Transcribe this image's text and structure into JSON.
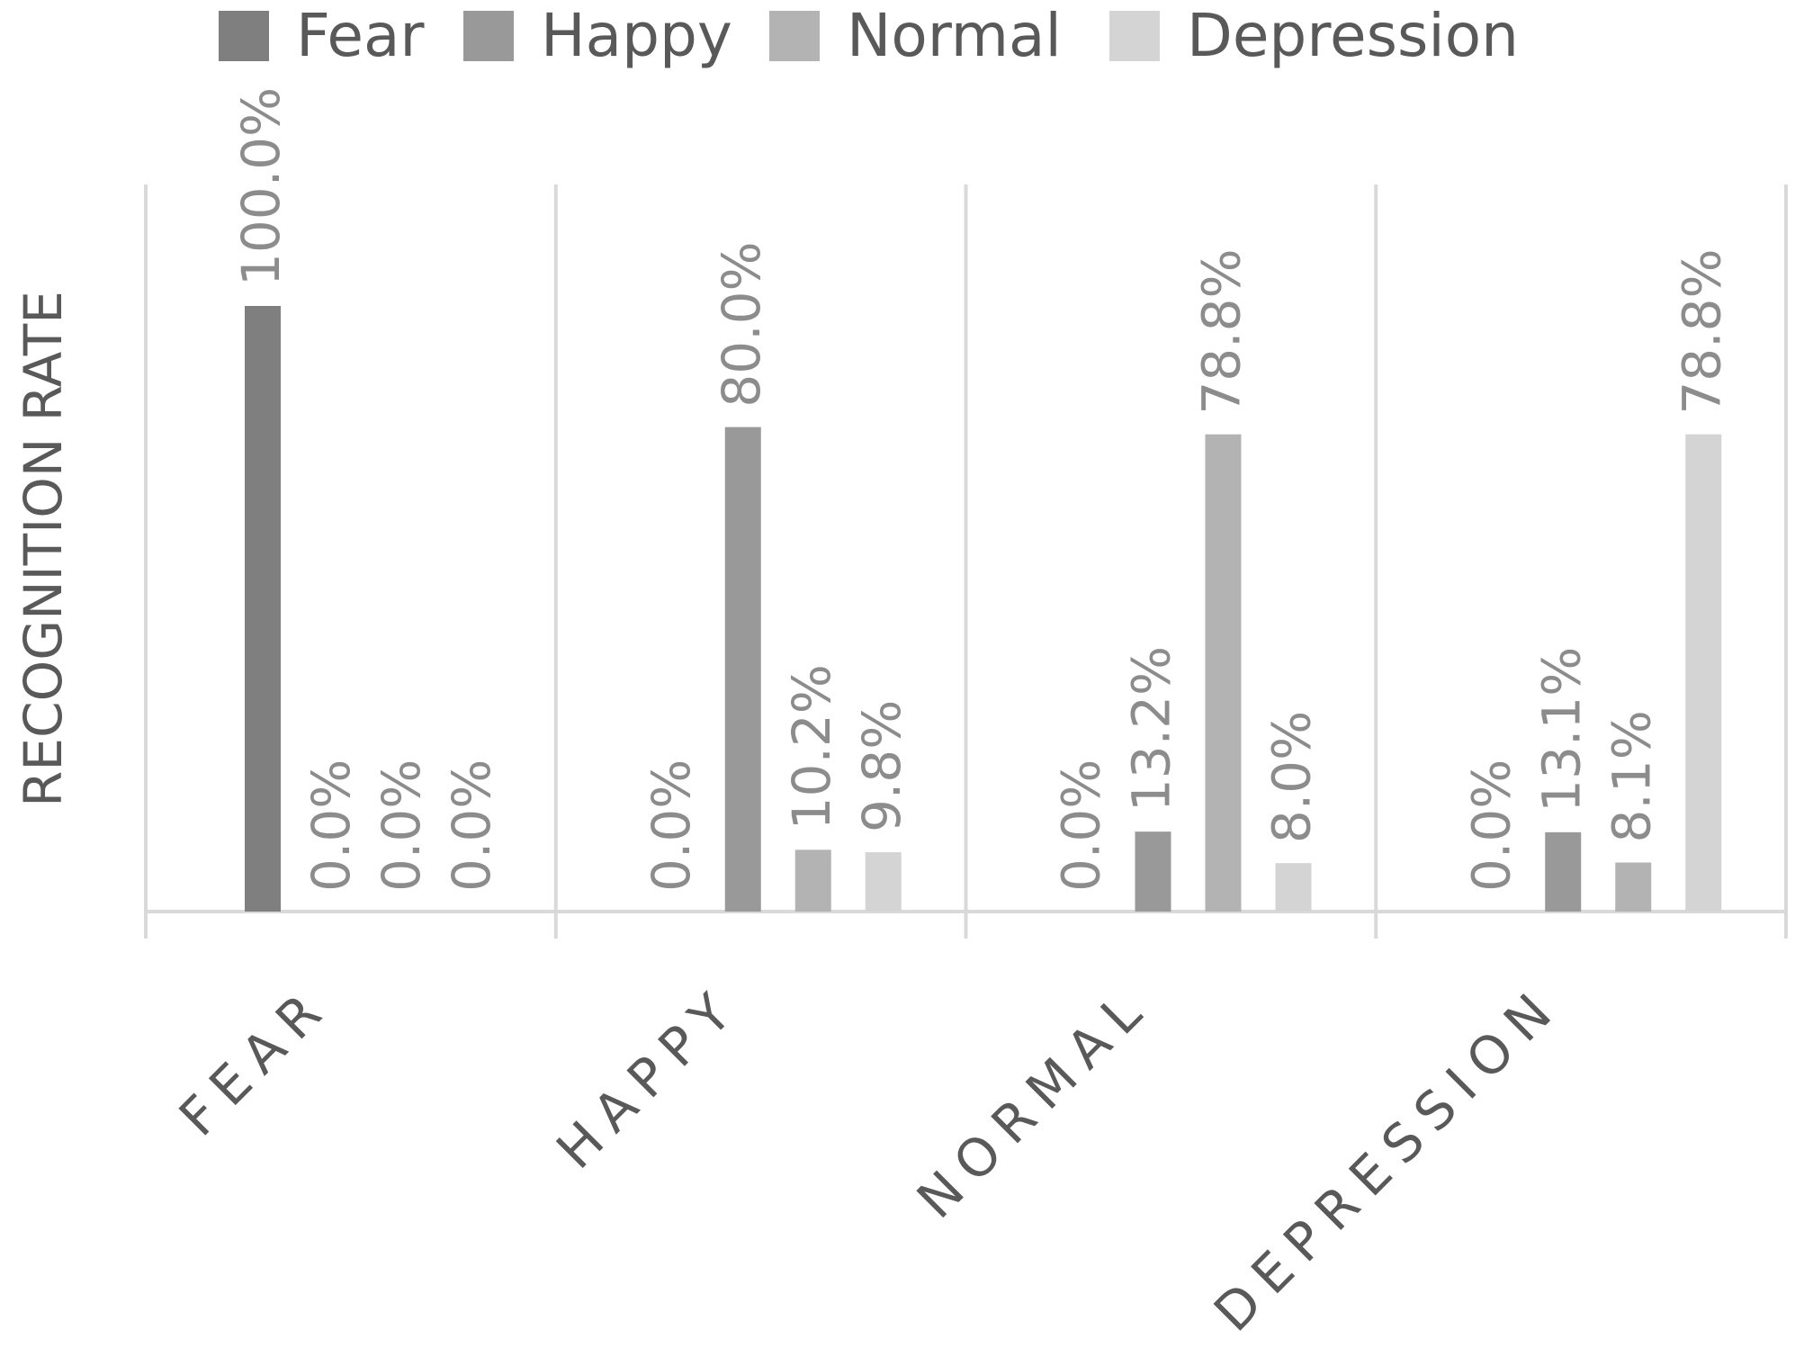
{
  "chart_data": {
    "type": "bar",
    "title": "",
    "xlabel": "",
    "ylabel": "RECOGNITION RATE",
    "ylim": [
      0,
      100
    ],
    "grid": false,
    "legend_position": "top",
    "categories": [
      "FEAR",
      "HAPPY",
      "NORMAL",
      "DEPRESSION"
    ],
    "series": [
      {
        "name": "Fear",
        "color": "#7f7f7f",
        "values": [
          100.0,
          0.0,
          0.0,
          0.0
        ]
      },
      {
        "name": "Happy",
        "color": "#999999",
        "values": [
          0.0,
          80.0,
          13.2,
          13.1
        ]
      },
      {
        "name": "Normal",
        "color": "#b3b3b3",
        "values": [
          0.0,
          10.2,
          78.8,
          8.1
        ]
      },
      {
        "name": "Depression",
        "color": "#d4d4d4",
        "values": [
          0.0,
          9.8,
          8.0,
          78.8
        ]
      }
    ],
    "data_labels": [
      [
        "100.0%",
        "0.0%",
        "0.0%",
        "0.0%"
      ],
      [
        "0.0%",
        "80.0%",
        "10.2%",
        "9.8%"
      ],
      [
        "0.0%",
        "13.2%",
        "78.8%",
        "8.0%"
      ],
      [
        "0.0%",
        "13.1%",
        "8.1%",
        "78.8%"
      ]
    ],
    "colors": {
      "axis": "#d9d9d9",
      "label_text": "#8c8c8c",
      "axis_text": "#595959",
      "legend_text": "#595959"
    }
  }
}
